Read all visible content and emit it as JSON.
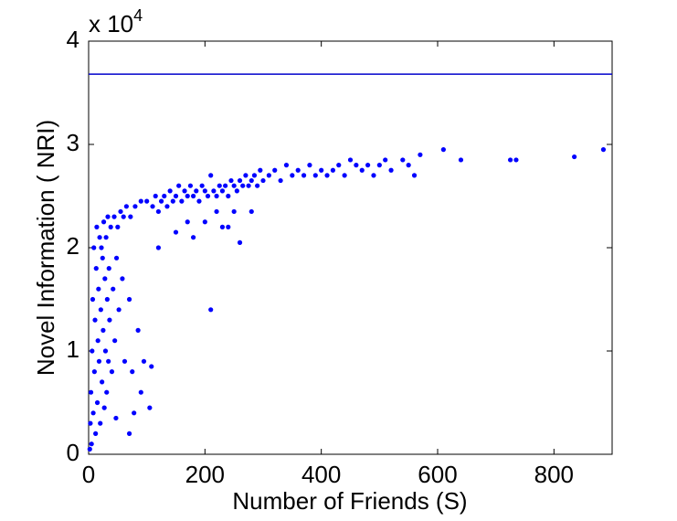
{
  "chart_data": {
    "type": "scatter",
    "xlabel": "Number of Friends (S)",
    "ylabel": "Novel Information ( NRI)",
    "y_multiplier": {
      "base": "x 10",
      "exponent": "4"
    },
    "color": "#0000ff",
    "xlim": [
      0,
      900
    ],
    "xticks": [
      0,
      200,
      400,
      600,
      800
    ],
    "ylim": [
      0,
      4
    ],
    "yticks": [
      0,
      1,
      2,
      3,
      4
    ],
    "reference_line": {
      "value": 3.68,
      "color": "#0000cc"
    },
    "x": [
      2,
      3,
      5,
      4,
      6,
      8,
      7,
      9,
      10,
      11,
      12,
      13,
      14,
      15,
      16,
      17,
      18,
      19,
      20,
      21,
      22,
      23,
      24,
      25,
      26,
      27,
      28,
      29,
      30,
      31,
      32,
      33,
      34,
      35,
      36,
      38,
      40,
      42,
      44,
      45,
      47,
      48,
      50,
      52,
      55,
      58,
      60,
      62,
      65,
      70,
      72,
      75,
      80,
      85,
      90,
      95,
      100,
      105,
      108,
      90,
      70,
      78,
      110,
      115,
      120,
      125,
      130,
      135,
      140,
      145,
      150,
      155,
      160,
      165,
      170,
      175,
      180,
      185,
      190,
      195,
      200,
      205,
      210,
      215,
      220,
      225,
      230,
      235,
      240,
      245,
      250,
      255,
      260,
      265,
      270,
      275,
      280,
      285,
      290,
      295,
      300,
      210,
      180,
      230,
      260,
      150,
      200,
      250,
      280,
      220,
      170,
      120,
      240,
      310,
      320,
      330,
      340,
      350,
      360,
      370,
      380,
      390,
      400,
      410,
      420,
      430,
      440,
      450,
      460,
      470,
      480,
      490,
      500,
      510,
      520,
      540,
      550,
      560,
      570,
      610,
      640,
      725,
      735,
      835,
      885
    ],
    "values": [
      0.05,
      0.3,
      0.1,
      0.6,
      1.0,
      0.4,
      1.5,
      2.0,
      0.8,
      1.3,
      0.2,
      1.8,
      2.2,
      0.5,
      1.1,
      1.6,
      0.9,
      2.1,
      0.3,
      1.4,
      2.0,
      0.7,
      1.9,
      1.2,
      2.25,
      0.45,
      1.7,
      1.0,
      2.1,
      0.6,
      1.5,
      2.3,
      0.9,
      1.8,
      1.3,
      2.2,
      0.8,
      1.6,
      2.3,
      1.1,
      0.35,
      1.9,
      2.2,
      1.4,
      2.35,
      1.7,
      2.3,
      0.9,
      2.4,
      1.5,
      2.3,
      0.8,
      2.4,
      1.2,
      2.45,
      0.9,
      2.45,
      0.45,
      0.85,
      0.6,
      0.2,
      0.4,
      2.4,
      2.5,
      2.35,
      2.45,
      2.5,
      2.4,
      2.55,
      2.45,
      2.5,
      2.6,
      2.45,
      2.55,
      2.5,
      2.6,
      2.5,
      2.55,
      2.45,
      2.6,
      2.55,
      2.5,
      2.7,
      2.55,
      2.5,
      2.6,
      2.55,
      2.6,
      2.5,
      2.65,
      2.6,
      2.55,
      2.65,
      2.6,
      2.7,
      2.6,
      2.65,
      2.7,
      2.6,
      2.75,
      2.65,
      1.4,
      2.1,
      2.2,
      2.05,
      2.15,
      2.25,
      2.35,
      2.35,
      2.35,
      2.25,
      2.0,
      2.2,
      2.7,
      2.75,
      2.65,
      2.8,
      2.7,
      2.75,
      2.7,
      2.8,
      2.7,
      2.75,
      2.7,
      2.75,
      2.8,
      2.7,
      2.85,
      2.8,
      2.75,
      2.8,
      2.7,
      2.8,
      2.85,
      2.75,
      2.85,
      2.8,
      2.7,
      2.9,
      2.95,
      2.85,
      2.85,
      2.85,
      2.88,
      2.95
    ]
  }
}
